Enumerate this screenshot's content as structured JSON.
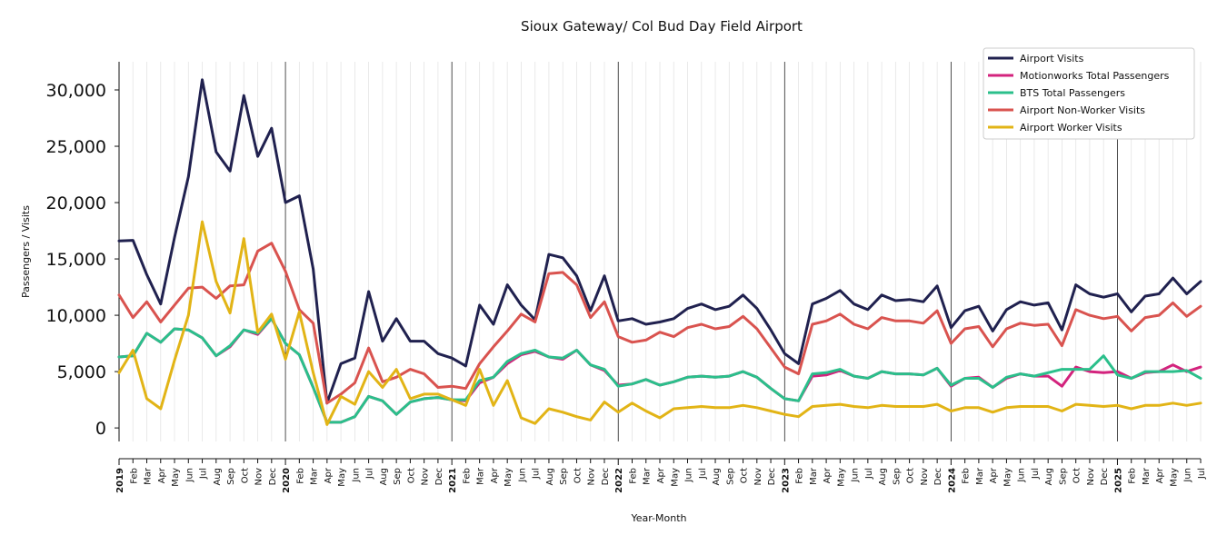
{
  "chart_data": {
    "type": "line",
    "title": "Sioux Gateway/ Col Bud Day Field Airport",
    "xlabel": "Year-Month",
    "ylabel": "Passengers / Visits",
    "ylim": [
      -1200,
      32500
    ],
    "yticks": [
      0,
      5000,
      10000,
      15000,
      20000,
      25000,
      30000
    ],
    "ytick_labels": [
      "0",
      "5,000",
      "10,000",
      "15,000",
      "20,000",
      "25,000",
      "30,000"
    ],
    "legend_position": "top-right",
    "x": [
      "2019",
      "Feb",
      "Mar",
      "Apr",
      "May",
      "Jun",
      "Jul",
      "Aug",
      "Sep",
      "Oct",
      "Nov",
      "Dec",
      "2020",
      "Feb",
      "Mar",
      "Apr",
      "May",
      "Jun",
      "Jul",
      "Aug",
      "Sep",
      "Oct",
      "Nov",
      "Dec",
      "2021",
      "Feb",
      "Mar",
      "Apr",
      "May",
      "Jun",
      "Jul",
      "Aug",
      "Sep",
      "Oct",
      "Nov",
      "Dec",
      "2022",
      "Feb",
      "Mar",
      "Apr",
      "May",
      "Jun",
      "Jul",
      "Aug",
      "Sep",
      "Oct",
      "Nov",
      "Dec",
      "2023",
      "Feb",
      "Mar",
      "Apr",
      "May",
      "Jun",
      "Jul",
      "Aug",
      "Sep",
      "Oct",
      "Nov",
      "Dec",
      "2024",
      "Feb",
      "Mar",
      "Apr",
      "May",
      "Jun",
      "Jul",
      "Aug",
      "Sep",
      "Oct",
      "Nov",
      "Dec",
      "2025",
      "Feb",
      "Mar",
      "Apr",
      "May",
      "Jun",
      "Jul"
    ],
    "year_labels": [
      "2019",
      "2020",
      "2021",
      "2022",
      "2023",
      "2024",
      "2025"
    ],
    "series": [
      {
        "name": "Airport Visits",
        "color": "#20214f",
        "values": [
          16600,
          16650,
          13600,
          11000,
          16900,
          22300,
          30900,
          24500,
          22800,
          29500,
          24100,
          26600,
          20000,
          20600,
          14100,
          2200,
          5700,
          6200,
          12100,
          7700,
          9700,
          7700,
          7700,
          6600,
          6200,
          5500,
          10900,
          9200,
          12700,
          10900,
          9600,
          15400,
          15100,
          13500,
          10400,
          13500,
          9500,
          9700,
          9200,
          9400,
          9700,
          10600,
          11000,
          10500,
          10800,
          11800,
          10600,
          8700,
          6600,
          5700,
          11000,
          11500,
          12200,
          11000,
          10500,
          11800,
          11300,
          11400,
          11200,
          12600,
          8900,
          10400,
          10800,
          8600,
          10500,
          11200,
          10900,
          11100,
          8700,
          12700,
          11900,
          11600,
          11900,
          10300,
          11700,
          11900,
          13300,
          11900,
          13000
        ]
      },
      {
        "name": "Motionworks Total Passengers",
        "color": "#d3237d",
        "values": [
          6300,
          6400,
          8400,
          7600,
          8800,
          8700,
          8000,
          6400,
          7200,
          8700,
          8300,
          9700,
          7500,
          6500,
          3600,
          500,
          500,
          1000,
          2800,
          2400,
          1200,
          2300,
          2600,
          2700,
          2500,
          2400,
          4000,
          4500,
          5700,
          6500,
          6800,
          6300,
          6100,
          6900,
          5600,
          5100,
          3800,
          3900,
          4300,
          3800,
          4100,
          4500,
          4600,
          4500,
          4600,
          5000,
          4500,
          3500,
          2600,
          2400,
          4600,
          4700,
          5100,
          4600,
          4400,
          5000,
          4800,
          4800,
          4700,
          5300,
          3700,
          4400,
          4500,
          3600,
          4400,
          4800,
          4600,
          4600,
          3700,
          5400,
          5000,
          4900,
          5000,
          4400,
          4900,
          5000,
          5600,
          5000,
          5400
        ]
      },
      {
        "name": "BTS Total Passengers",
        "color": "#2bbf8b",
        "values": [
          6300,
          6400,
          8400,
          7600,
          8800,
          8700,
          8000,
          6400,
          7300,
          8700,
          8400,
          9700,
          7500,
          6500,
          3600,
          500,
          500,
          1000,
          2800,
          2400,
          1200,
          2300,
          2600,
          2700,
          2500,
          2500,
          4200,
          4500,
          5900,
          6600,
          6900,
          6300,
          6200,
          6900,
          5600,
          5200,
          3700,
          3900,
          4300,
          3800,
          4100,
          4500,
          4600,
          4500,
          4600,
          5000,
          4500,
          3500,
          2600,
          2400,
          4800,
          4900,
          5200,
          4600,
          4400,
          5000,
          4800,
          4800,
          4700,
          5300,
          3800,
          4400,
          4400,
          3600,
          4500,
          4800,
          4600,
          4900,
          5200,
          5200,
          5200,
          6400,
          4700,
          4400,
          5000,
          5000,
          5000,
          5100,
          4400
        ]
      },
      {
        "name": "Airport Non-Worker Visits",
        "color": "#d9534f",
        "values": [
          11800,
          9800,
          11200,
          9400,
          10900,
          12400,
          12500,
          11500,
          12600,
          12700,
          15700,
          16400,
          13900,
          10500,
          9300,
          2200,
          3000,
          4000,
          7100,
          4100,
          4500,
          5200,
          4800,
          3600,
          3700,
          3500,
          5700,
          7200,
          8600,
          10100,
          9400,
          13700,
          13800,
          12700,
          9800,
          11200,
          8100,
          7600,
          7800,
          8500,
          8100,
          8900,
          9200,
          8800,
          9000,
          9900,
          8800,
          7100,
          5400,
          4800,
          9200,
          9500,
          10100,
          9200,
          8800,
          9800,
          9500,
          9500,
          9300,
          10400,
          7500,
          8800,
          9000,
          7200,
          8800,
          9300,
          9100,
          9200,
          7300,
          10500,
          10000,
          9700,
          9900,
          8600,
          9800,
          10000,
          11100,
          9900,
          10800
        ]
      },
      {
        "name": "Airport Worker Visits",
        "color": "#e2b416",
        "values": [
          4900,
          6900,
          2600,
          1700,
          6000,
          10000,
          18300,
          13000,
          10200,
          16800,
          8500,
          10100,
          6100,
          10300,
          4900,
          300,
          2800,
          2100,
          5000,
          3600,
          5200,
          2600,
          3000,
          3000,
          2500,
          2000,
          5200,
          2000,
          4200,
          900,
          400,
          1700,
          1400,
          1000,
          700,
          2300,
          1400,
          2200,
          1500,
          900,
          1700,
          1800,
          1900,
          1800,
          1800,
          2000,
          1800,
          1500,
          1200,
          1000,
          1900,
          2000,
          2100,
          1900,
          1800,
          2000,
          1900,
          1900,
          1900,
          2100,
          1500,
          1800,
          1800,
          1400,
          1800,
          1900,
          1900,
          1900,
          1500,
          2100,
          2000,
          1900,
          2000,
          1700,
          2000,
          2000,
          2200,
          2000,
          2200
        ]
      }
    ]
  }
}
